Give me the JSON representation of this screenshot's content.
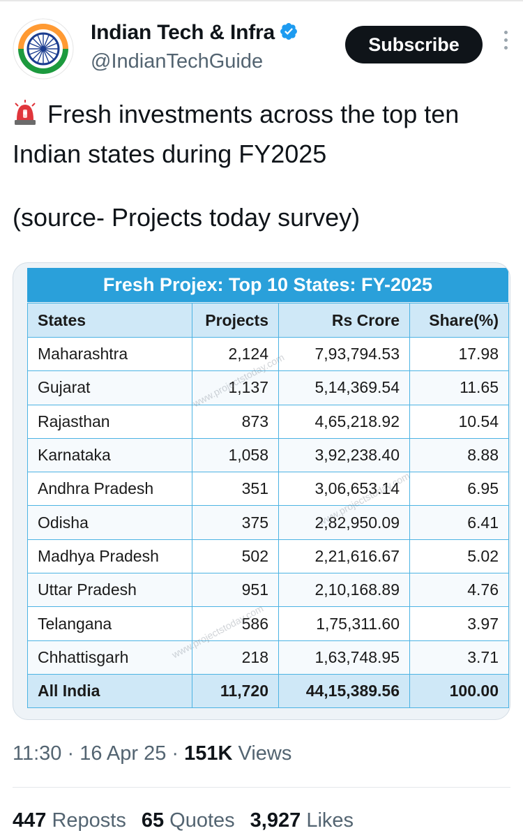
{
  "account": {
    "display_name": "Indian Tech & Infra",
    "handle": "@IndianTechGuide",
    "subscribe_label": "Subscribe"
  },
  "tweet": {
    "emoji_icon": "police-siren-icon",
    "line1": "Fresh investments across the top ten Indian states during FY2025",
    "source": "(source- Projects today survey)"
  },
  "table": {
    "title": "Fresh Projex: Top 10 States: FY-2025",
    "headers": [
      "States",
      "Projects",
      "Rs Crore",
      "Share(%)"
    ],
    "rows": [
      [
        "Maharashtra",
        "2,124",
        "7,93,794.53",
        "17.98"
      ],
      [
        "Gujarat",
        "1,137",
        "5,14,369.54",
        "11.65"
      ],
      [
        "Rajasthan",
        "873",
        "4,65,218.92",
        "10.54"
      ],
      [
        "Karnataka",
        "1,058",
        "3,92,238.40",
        "8.88"
      ],
      [
        "Andhra Pradesh",
        "351",
        "3,06,653.14",
        "6.95"
      ],
      [
        "Odisha",
        "375",
        "2,82,950.09",
        "6.41"
      ],
      [
        "Madhya Pradesh",
        "502",
        "2,21,616.67",
        "5.02"
      ],
      [
        "Uttar Pradesh",
        "951",
        "2,10,168.89",
        "4.76"
      ],
      [
        "Telangana",
        "586",
        "1,75,311.60",
        "3.97"
      ],
      [
        "Chhattisgarh",
        "218",
        "1,63,748.95",
        "3.71"
      ]
    ],
    "total": [
      "All India",
      "11,720",
      "44,15,389.56",
      "100.00"
    ],
    "watermark": "www.projectstoday.com",
    "header_color": "#2aa0da"
  },
  "meta": {
    "time": "11:30",
    "date": "16 Apr 25",
    "views_count": "151K",
    "views_label": "Views"
  },
  "stats": {
    "reposts_count": "447",
    "reposts_label": "Reposts",
    "quotes_count": "65",
    "quotes_label": "Quotes",
    "likes_count": "3,927",
    "likes_label": "Likes"
  },
  "colors": {
    "verified": "#1d9bf0",
    "subscribe_bg": "#0f1419",
    "muted_text": "#536471"
  }
}
